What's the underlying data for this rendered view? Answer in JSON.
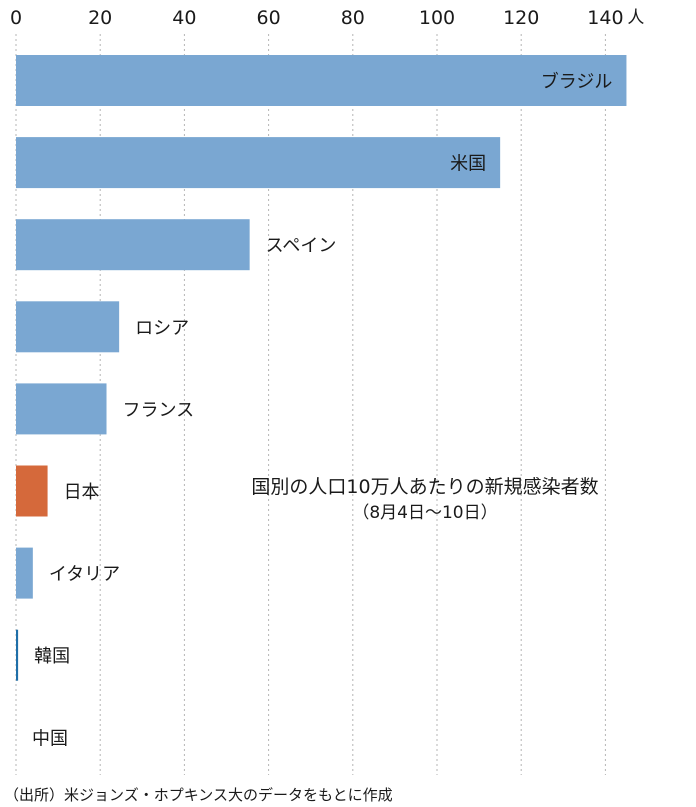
{
  "chart_data": {
    "type": "bar",
    "orientation": "horizontal",
    "title": "国別の人口10万人あたりの新規感染者数",
    "subtitle": "（8月4日〜10日）",
    "unit": "人",
    "xlim": [
      0,
      145
    ],
    "ticks": [
      0,
      20,
      40,
      60,
      80,
      100,
      120,
      140
    ],
    "grid": true,
    "categories": [
      "ブラジル",
      "米国",
      "スペイン",
      "ロシア",
      "フランス",
      "日本",
      "イタリア",
      "韓国",
      "中国"
    ],
    "values": [
      145,
      115,
      55.5,
      24.5,
      21.5,
      7.5,
      4,
      0.5,
      0
    ],
    "colors": [
      "#7aa7d2",
      "#7aa7d2",
      "#7aa7d2",
      "#7aa7d2",
      "#7aa7d2",
      "#d5693b",
      "#7aa7d2",
      "#1f6fa8",
      "#7aa7d2"
    ],
    "highlight": "日本",
    "source": "（出所）米ジョンズ・ホプキンス大のデータをもとに作成"
  }
}
